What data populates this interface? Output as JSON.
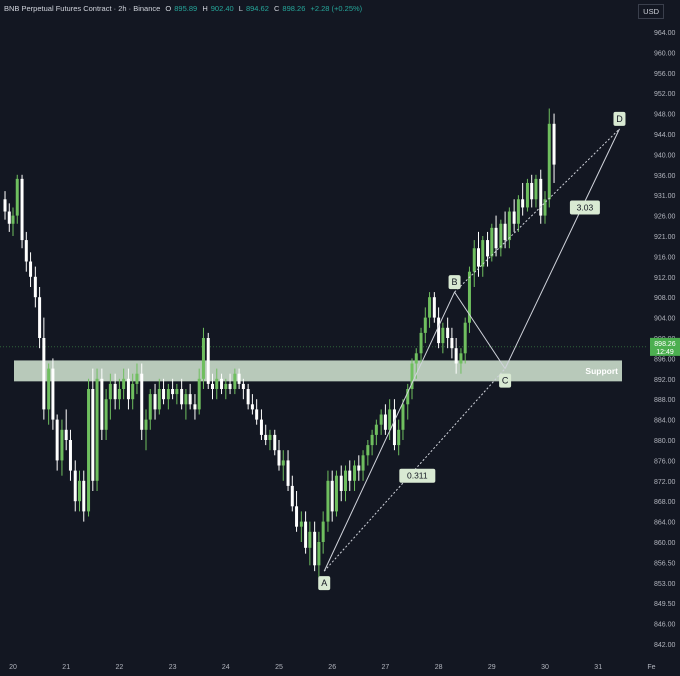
{
  "header": {
    "symbol": "BNB Perpetual Futures Contract · 2h · Binance",
    "open_label": "O",
    "open": "895.89",
    "high_label": "H",
    "high": "902.40",
    "low_label": "L",
    "low": "894.62",
    "close_label": "C",
    "close": "898.26",
    "change": "+2.28 (+0.25%)",
    "currency": "USD"
  },
  "chart_data": {
    "type": "candlestick",
    "y_axis": {
      "ticks": [
        "964.00",
        "960.00",
        "956.00",
        "952.00",
        "948.00",
        "944.00",
        "940.00",
        "936.00",
        "931.00",
        "926.00",
        "921.00",
        "916.00",
        "912.00",
        "908.00",
        "904.00",
        "900.00",
        "896.00",
        "892.00",
        "888.00",
        "884.00",
        "880.00",
        "876.00",
        "872.00",
        "868.00",
        "864.00",
        "860.00",
        "856.50",
        "853.00",
        "849.50",
        "846.00",
        "842.00"
      ],
      "range": [
        840,
        968
      ]
    },
    "x_axis": {
      "ticks": [
        "20",
        "21",
        "22",
        "23",
        "24",
        "25",
        "26",
        "27",
        "28",
        "29",
        "30",
        "31",
        "Fe"
      ]
    },
    "last_price": "898.26",
    "countdown": "12:49",
    "support_zone": {
      "label": "Support",
      "low": 891.5,
      "high": 895.6
    },
    "harmonic_points": [
      {
        "label": "A",
        "date": 25.85,
        "price": 855.0
      },
      {
        "label": "B",
        "date": 28.3,
        "price": 909.0
      },
      {
        "label": "C",
        "date": 29.25,
        "price": 894.0
      },
      {
        "label": "D",
        "date": 31.4,
        "price": 945.0
      }
    ],
    "ratios": [
      {
        "label": "0.311",
        "date": 27.6,
        "price": 873.0
      },
      {
        "label": "3.03",
        "date": 30.75,
        "price": 928.0
      }
    ],
    "candles": [
      {
        "t": 19.85,
        "o": 930,
        "h": 932,
        "l": 925,
        "c": 927
      },
      {
        "t": 19.93,
        "o": 927,
        "h": 929,
        "l": 922,
        "c": 924
      },
      {
        "t": 20.0,
        "o": 924,
        "h": 928,
        "l": 921,
        "c": 926
      },
      {
        "t": 20.08,
        "o": 926,
        "h": 936,
        "l": 924,
        "c": 935
      },
      {
        "t": 20.17,
        "o": 935,
        "h": 936,
        "l": 918,
        "c": 920
      },
      {
        "t": 20.25,
        "o": 920,
        "h": 922,
        "l": 913,
        "c": 915
      },
      {
        "t": 20.33,
        "o": 915,
        "h": 917,
        "l": 910,
        "c": 912
      },
      {
        "t": 20.42,
        "o": 912,
        "h": 914,
        "l": 906,
        "c": 908
      },
      {
        "t": 20.5,
        "o": 908,
        "h": 910,
        "l": 898,
        "c": 900
      },
      {
        "t": 20.58,
        "o": 900,
        "h": 904,
        "l": 884,
        "c": 886
      },
      {
        "t": 20.67,
        "o": 886,
        "h": 895,
        "l": 883,
        "c": 894
      },
      {
        "t": 20.75,
        "o": 894,
        "h": 896,
        "l": 882,
        "c": 884
      },
      {
        "t": 20.83,
        "o": 884,
        "h": 885,
        "l": 874,
        "c": 876
      },
      {
        "t": 20.92,
        "o": 876,
        "h": 884,
        "l": 873,
        "c": 882
      },
      {
        "t": 21.0,
        "o": 882,
        "h": 886,
        "l": 878,
        "c": 880
      },
      {
        "t": 21.08,
        "o": 880,
        "h": 882,
        "l": 872,
        "c": 874
      },
      {
        "t": 21.17,
        "o": 874,
        "h": 876,
        "l": 866,
        "c": 868
      },
      {
        "t": 21.25,
        "o": 868,
        "h": 874,
        "l": 866,
        "c": 872
      },
      {
        "t": 21.33,
        "o": 872,
        "h": 874,
        "l": 864,
        "c": 866
      },
      {
        "t": 21.42,
        "o": 866,
        "h": 892,
        "l": 865,
        "c": 890
      },
      {
        "t": 21.5,
        "o": 890,
        "h": 894,
        "l": 870,
        "c": 872
      },
      {
        "t": 21.58,
        "o": 872,
        "h": 894,
        "l": 870,
        "c": 892
      },
      {
        "t": 21.67,
        "o": 892,
        "h": 894,
        "l": 880,
        "c": 882
      },
      {
        "t": 21.75,
        "o": 882,
        "h": 890,
        "l": 880,
        "c": 888
      },
      {
        "t": 21.83,
        "o": 888,
        "h": 893,
        "l": 884,
        "c": 891
      },
      {
        "t": 21.92,
        "o": 891,
        "h": 893,
        "l": 886,
        "c": 888
      },
      {
        "t": 22.0,
        "o": 888,
        "h": 892,
        "l": 886,
        "c": 890
      },
      {
        "t": 22.08,
        "o": 890,
        "h": 894,
        "l": 888,
        "c": 892
      },
      {
        "t": 22.17,
        "o": 892,
        "h": 894,
        "l": 886,
        "c": 888
      },
      {
        "t": 22.25,
        "o": 888,
        "h": 893,
        "l": 886,
        "c": 891
      },
      {
        "t": 22.33,
        "o": 891,
        "h": 895,
        "l": 889,
        "c": 893
      },
      {
        "t": 22.42,
        "o": 893,
        "h": 895,
        "l": 880,
        "c": 882
      },
      {
        "t": 22.5,
        "o": 882,
        "h": 886,
        "l": 878,
        "c": 884
      },
      {
        "t": 22.58,
        "o": 884,
        "h": 890,
        "l": 882,
        "c": 889
      },
      {
        "t": 22.67,
        "o": 889,
        "h": 891,
        "l": 884,
        "c": 886
      },
      {
        "t": 22.75,
        "o": 886,
        "h": 892,
        "l": 885,
        "c": 890
      },
      {
        "t": 22.83,
        "o": 890,
        "h": 892,
        "l": 887,
        "c": 888
      },
      {
        "t": 22.92,
        "o": 888,
        "h": 891,
        "l": 886,
        "c": 890
      },
      {
        "t": 23.0,
        "o": 890,
        "h": 892,
        "l": 888,
        "c": 889
      },
      {
        "t": 23.08,
        "o": 889,
        "h": 891,
        "l": 887,
        "c": 890
      },
      {
        "t": 23.17,
        "o": 890,
        "h": 892,
        "l": 886,
        "c": 887
      },
      {
        "t": 23.25,
        "o": 887,
        "h": 890,
        "l": 884,
        "c": 889
      },
      {
        "t": 23.33,
        "o": 889,
        "h": 891,
        "l": 886,
        "c": 887
      },
      {
        "t": 23.42,
        "o": 887,
        "h": 889,
        "l": 884,
        "c": 886
      },
      {
        "t": 23.5,
        "o": 886,
        "h": 894,
        "l": 885,
        "c": 892
      },
      {
        "t": 23.58,
        "o": 892,
        "h": 902,
        "l": 890,
        "c": 900
      },
      {
        "t": 23.67,
        "o": 900,
        "h": 901,
        "l": 890,
        "c": 891
      },
      {
        "t": 23.75,
        "o": 891,
        "h": 893,
        "l": 888,
        "c": 890
      },
      {
        "t": 23.83,
        "o": 890,
        "h": 894,
        "l": 888,
        "c": 892
      },
      {
        "t": 23.92,
        "o": 892,
        "h": 893,
        "l": 889,
        "c": 890
      },
      {
        "t": 24.0,
        "o": 890,
        "h": 892,
        "l": 888,
        "c": 891
      },
      {
        "t": 24.08,
        "o": 891,
        "h": 893,
        "l": 889,
        "c": 890
      },
      {
        "t": 24.17,
        "o": 890,
        "h": 894,
        "l": 889,
        "c": 893
      },
      {
        "t": 24.25,
        "o": 893,
        "h": 894,
        "l": 890,
        "c": 891
      },
      {
        "t": 24.33,
        "o": 891,
        "h": 892,
        "l": 888,
        "c": 890
      },
      {
        "t": 24.42,
        "o": 890,
        "h": 891,
        "l": 886,
        "c": 887
      },
      {
        "t": 24.5,
        "o": 887,
        "h": 889,
        "l": 885,
        "c": 886
      },
      {
        "t": 24.58,
        "o": 886,
        "h": 888,
        "l": 883,
        "c": 884
      },
      {
        "t": 24.67,
        "o": 884,
        "h": 886,
        "l": 880,
        "c": 881
      },
      {
        "t": 24.75,
        "o": 881,
        "h": 883,
        "l": 879,
        "c": 880
      },
      {
        "t": 24.83,
        "o": 880,
        "h": 882,
        "l": 878,
        "c": 881
      },
      {
        "t": 24.92,
        "o": 881,
        "h": 882,
        "l": 877,
        "c": 878
      },
      {
        "t": 25.0,
        "o": 878,
        "h": 880,
        "l": 874,
        "c": 875
      },
      {
        "t": 25.08,
        "o": 875,
        "h": 878,
        "l": 872,
        "c": 876
      },
      {
        "t": 25.17,
        "o": 876,
        "h": 878,
        "l": 870,
        "c": 871
      },
      {
        "t": 25.25,
        "o": 871,
        "h": 873,
        "l": 866,
        "c": 867
      },
      {
        "t": 25.33,
        "o": 867,
        "h": 870,
        "l": 862,
        "c": 863
      },
      {
        "t": 25.42,
        "o": 863,
        "h": 866,
        "l": 860,
        "c": 864
      },
      {
        "t": 25.5,
        "o": 864,
        "h": 866,
        "l": 858,
        "c": 859
      },
      {
        "t": 25.58,
        "o": 859,
        "h": 864,
        "l": 856,
        "c": 862
      },
      {
        "t": 25.67,
        "o": 862,
        "h": 864,
        "l": 855,
        "c": 856
      },
      {
        "t": 25.75,
        "o": 856,
        "h": 862,
        "l": 854,
        "c": 860
      },
      {
        "t": 25.83,
        "o": 860,
        "h": 866,
        "l": 858,
        "c": 864
      },
      {
        "t": 25.92,
        "o": 864,
        "h": 874,
        "l": 862,
        "c": 872
      },
      {
        "t": 26.0,
        "o": 872,
        "h": 874,
        "l": 864,
        "c": 866
      },
      {
        "t": 26.08,
        "o": 866,
        "h": 874,
        "l": 865,
        "c": 873
      },
      {
        "t": 26.17,
        "o": 873,
        "h": 875,
        "l": 868,
        "c": 870
      },
      {
        "t": 26.25,
        "o": 870,
        "h": 875,
        "l": 868,
        "c": 874
      },
      {
        "t": 26.33,
        "o": 874,
        "h": 876,
        "l": 870,
        "c": 872
      },
      {
        "t": 26.42,
        "o": 872,
        "h": 876,
        "l": 870,
        "c": 875
      },
      {
        "t": 26.5,
        "o": 875,
        "h": 877,
        "l": 872,
        "c": 874
      },
      {
        "t": 26.58,
        "o": 874,
        "h": 878,
        "l": 872,
        "c": 877
      },
      {
        "t": 26.67,
        "o": 877,
        "h": 880,
        "l": 875,
        "c": 879
      },
      {
        "t": 26.75,
        "o": 879,
        "h": 882,
        "l": 877,
        "c": 881
      },
      {
        "t": 26.83,
        "o": 881,
        "h": 884,
        "l": 879,
        "c": 883
      },
      {
        "t": 26.92,
        "o": 883,
        "h": 886,
        "l": 881,
        "c": 885
      },
      {
        "t": 27.0,
        "o": 885,
        "h": 887,
        "l": 881,
        "c": 882
      },
      {
        "t": 27.08,
        "o": 882,
        "h": 888,
        "l": 880,
        "c": 886
      },
      {
        "t": 27.17,
        "o": 886,
        "h": 888,
        "l": 878,
        "c": 879
      },
      {
        "t": 27.25,
        "o": 879,
        "h": 884,
        "l": 877,
        "c": 882
      },
      {
        "t": 27.33,
        "o": 882,
        "h": 888,
        "l": 880,
        "c": 887
      },
      {
        "t": 27.42,
        "o": 887,
        "h": 891,
        "l": 884,
        "c": 890
      },
      {
        "t": 27.5,
        "o": 890,
        "h": 896,
        "l": 888,
        "c": 895
      },
      {
        "t": 27.58,
        "o": 895,
        "h": 898,
        "l": 892,
        "c": 897
      },
      {
        "t": 27.67,
        "o": 897,
        "h": 902,
        "l": 895,
        "c": 901
      },
      {
        "t": 27.75,
        "o": 901,
        "h": 906,
        "l": 899,
        "c": 904
      },
      {
        "t": 27.83,
        "o": 904,
        "h": 909,
        "l": 902,
        "c": 908
      },
      {
        "t": 27.92,
        "o": 908,
        "h": 909,
        "l": 903,
        "c": 904
      },
      {
        "t": 28.0,
        "o": 904,
        "h": 906,
        "l": 898,
        "c": 899
      },
      {
        "t": 28.08,
        "o": 899,
        "h": 903,
        "l": 897,
        "c": 902
      },
      {
        "t": 28.17,
        "o": 902,
        "h": 904,
        "l": 898,
        "c": 900
      },
      {
        "t": 28.25,
        "o": 900,
        "h": 902,
        "l": 896,
        "c": 898
      },
      {
        "t": 28.33,
        "o": 898,
        "h": 900,
        "l": 893,
        "c": 895
      },
      {
        "t": 28.42,
        "o": 895,
        "h": 898,
        "l": 893,
        "c": 897
      },
      {
        "t": 28.5,
        "o": 897,
        "h": 904,
        "l": 895,
        "c": 903
      },
      {
        "t": 28.58,
        "o": 903,
        "h": 914,
        "l": 901,
        "c": 913
      },
      {
        "t": 28.67,
        "o": 913,
        "h": 920,
        "l": 910,
        "c": 918
      },
      {
        "t": 28.75,
        "o": 918,
        "h": 922,
        "l": 912,
        "c": 914
      },
      {
        "t": 28.83,
        "o": 914,
        "h": 921,
        "l": 912,
        "c": 920
      },
      {
        "t": 28.92,
        "o": 920,
        "h": 922,
        "l": 914,
        "c": 916
      },
      {
        "t": 29.0,
        "o": 916,
        "h": 924,
        "l": 915,
        "c": 923
      },
      {
        "t": 29.08,
        "o": 923,
        "h": 926,
        "l": 916,
        "c": 918
      },
      {
        "t": 29.17,
        "o": 918,
        "h": 925,
        "l": 916,
        "c": 924
      },
      {
        "t": 29.25,
        "o": 924,
        "h": 927,
        "l": 918,
        "c": 920
      },
      {
        "t": 29.33,
        "o": 920,
        "h": 928,
        "l": 918,
        "c": 927
      },
      {
        "t": 29.42,
        "o": 927,
        "h": 930,
        "l": 922,
        "c": 924
      },
      {
        "t": 29.5,
        "o": 924,
        "h": 931,
        "l": 922,
        "c": 930
      },
      {
        "t": 29.58,
        "o": 930,
        "h": 934,
        "l": 926,
        "c": 928
      },
      {
        "t": 29.67,
        "o": 928,
        "h": 935,
        "l": 927,
        "c": 934
      },
      {
        "t": 29.75,
        "o": 934,
        "h": 936,
        "l": 928,
        "c": 930
      },
      {
        "t": 29.83,
        "o": 930,
        "h": 936,
        "l": 928,
        "c": 935
      },
      {
        "t": 29.92,
        "o": 935,
        "h": 937,
        "l": 924,
        "c": 926
      },
      {
        "t": 30.0,
        "o": 926,
        "h": 932,
        "l": 924,
        "c": 930
      },
      {
        "t": 30.08,
        "o": 930,
        "h": 949,
        "l": 928,
        "c": 946
      },
      {
        "t": 30.17,
        "o": 946,
        "h": 948,
        "l": 934,
        "c": 938
      }
    ]
  }
}
